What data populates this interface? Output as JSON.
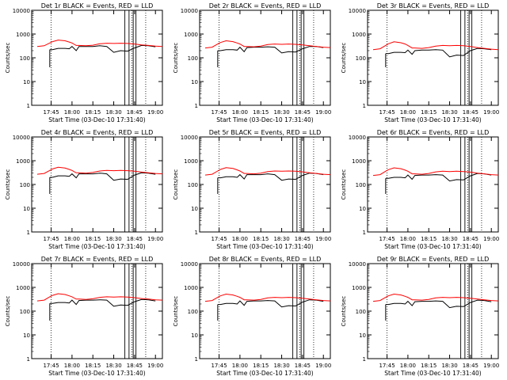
{
  "figure": {
    "xlabel": "Start Time (03-Dec-10 17:31:40)",
    "ylabel": "Counts/sec"
  },
  "colors": {
    "events": "#000000",
    "lld": "#ff0000",
    "axis": "#000000",
    "background": "#ffffff"
  },
  "chart_data": [
    {
      "type": "line",
      "title": "Det 1r BLACK = Events, RED = LLD",
      "xlabel": "Start Time (03-Dec-10 17:31:40)",
      "ylabel": "Counts/sec",
      "y_scale": "log",
      "ylim": [
        1,
        10000
      ],
      "xlim": [
        "17:31",
        "19:05"
      ],
      "y_ticks": [
        "1",
        "10",
        "100",
        "1000",
        "10000"
      ],
      "x_ticks": [
        "17:45",
        "18:00",
        "18:15",
        "18:30",
        "18:45",
        "19:00"
      ],
      "x": [
        "17:35",
        "17:40",
        "17:44",
        "17:46",
        "17:50",
        "17:55",
        "17:58",
        "18:00",
        "18:03",
        "18:05",
        "18:10",
        "18:15",
        "18:20",
        "18:25",
        "18:30",
        "18:35",
        "18:40",
        "18:45",
        "18:50",
        "18:55",
        "19:00",
        "19:05"
      ],
      "series": [
        {
          "name": "Events",
          "values": [
            null,
            null,
            220,
            220,
            250,
            250,
            240,
            300,
            200,
            300,
            300,
            300,
            320,
            300,
            170,
            200,
            190,
            260,
            330,
            320,
            290,
            null
          ]
        },
        {
          "name": "LLD",
          "values": [
            300,
            320,
            420,
            480,
            560,
            520,
            460,
            420,
            330,
            330,
            320,
            340,
            390,
            410,
            400,
            410,
            400,
            380,
            350,
            330,
            310,
            300
          ]
        }
      ]
    },
    {
      "type": "line",
      "title": "Det 2r BLACK = Events, RED = LLD",
      "xlabel": "Start Time (03-Dec-10 17:31:40)",
      "ylabel": "Counts/sec",
      "y_scale": "log",
      "ylim": [
        1,
        10000
      ],
      "xlim": [
        "17:31",
        "19:05"
      ],
      "y_ticks": [
        "1",
        "10",
        "100",
        "1000",
        "10000"
      ],
      "x_ticks": [
        "17:45",
        "18:00",
        "18:15",
        "18:30",
        "18:45",
        "19:00"
      ],
      "x": [
        "17:35",
        "17:40",
        "17:44",
        "17:46",
        "17:50",
        "17:55",
        "17:58",
        "18:00",
        "18:03",
        "18:05",
        "18:10",
        "18:15",
        "18:20",
        "18:25",
        "18:30",
        "18:35",
        "18:40",
        "18:45",
        "18:50",
        "18:55",
        "19:00",
        "19:05"
      ],
      "series": [
        {
          "name": "Events",
          "values": [
            null,
            null,
            200,
            200,
            220,
            220,
            210,
            280,
            180,
            270,
            280,
            280,
            290,
            280,
            160,
            180,
            175,
            240,
            300,
            300,
            270,
            null
          ]
        },
        {
          "name": "LLD",
          "values": [
            260,
            280,
            380,
            440,
            520,
            480,
            420,
            380,
            300,
            300,
            290,
            310,
            360,
            380,
            370,
            380,
            370,
            350,
            320,
            300,
            280,
            270
          ]
        }
      ]
    },
    {
      "type": "line",
      "title": "Det 3r BLACK = Events, RED = LLD",
      "xlabel": "Start Time (03-Dec-10 17:31:40)",
      "ylabel": "Counts/sec",
      "y_scale": "log",
      "ylim": [
        1,
        10000
      ],
      "xlim": [
        "17:31",
        "19:05"
      ],
      "y_ticks": [
        "1",
        "10",
        "100",
        "1000",
        "10000"
      ],
      "x_ticks": [
        "17:45",
        "18:00",
        "18:15",
        "18:30",
        "18:45",
        "19:00"
      ],
      "x": [
        "17:35",
        "17:40",
        "17:44",
        "17:46",
        "17:50",
        "17:55",
        "17:58",
        "18:00",
        "18:03",
        "18:05",
        "18:10",
        "18:15",
        "18:20",
        "18:25",
        "18:30",
        "18:35",
        "18:40",
        "18:45",
        "18:50",
        "18:55",
        "19:00",
        "19:05"
      ],
      "series": [
        {
          "name": "Events",
          "values": [
            null,
            null,
            150,
            150,
            170,
            170,
            165,
            210,
            140,
            200,
            210,
            210,
            220,
            210,
            110,
            130,
            125,
            200,
            250,
            240,
            220,
            null
          ]
        },
        {
          "name": "LLD",
          "values": [
            220,
            240,
            330,
            390,
            470,
            430,
            380,
            330,
            260,
            260,
            250,
            270,
            310,
            330,
            320,
            330,
            320,
            300,
            270,
            250,
            230,
            220
          ]
        }
      ]
    },
    {
      "type": "line",
      "title": "Det 4r BLACK = Events, RED = LLD",
      "xlabel": "Start Time (03-Dec-10 17:31:40)",
      "ylabel": "Counts/sec",
      "y_scale": "log",
      "ylim": [
        1,
        10000
      ],
      "xlim": [
        "17:31",
        "19:05"
      ],
      "y_ticks": [
        "1",
        "10",
        "100",
        "1000",
        "10000"
      ],
      "x_ticks": [
        "17:45",
        "18:00",
        "18:15",
        "18:30",
        "18:45",
        "19:00"
      ],
      "x": [
        "17:35",
        "17:40",
        "17:44",
        "17:46",
        "17:50",
        "17:55",
        "17:58",
        "18:00",
        "18:03",
        "18:05",
        "18:10",
        "18:15",
        "18:20",
        "18:25",
        "18:30",
        "18:35",
        "18:40",
        "18:45",
        "18:50",
        "18:55",
        "19:00",
        "19:05"
      ],
      "series": [
        {
          "name": "Events",
          "values": [
            null,
            null,
            200,
            200,
            230,
            230,
            220,
            280,
            190,
            280,
            280,
            280,
            300,
            280,
            150,
            170,
            165,
            250,
            310,
            300,
            270,
            null
          ]
        },
        {
          "name": "LLD",
          "values": [
            270,
            290,
            390,
            450,
            530,
            490,
            430,
            390,
            310,
            310,
            300,
            320,
            370,
            390,
            380,
            390,
            380,
            360,
            330,
            310,
            290,
            280
          ]
        }
      ]
    },
    {
      "type": "line",
      "title": "Det 5r BLACK = Events, RED = LLD",
      "xlabel": "Start Time (03-Dec-10 17:31:40)",
      "ylabel": "Counts/sec",
      "y_scale": "log",
      "ylim": [
        1,
        10000
      ],
      "xlim": [
        "17:31",
        "19:05"
      ],
      "y_ticks": [
        "1",
        "10",
        "100",
        "1000",
        "10000"
      ],
      "x_ticks": [
        "17:45",
        "18:00",
        "18:15",
        "18:30",
        "18:45",
        "19:00"
      ],
      "x": [
        "17:35",
        "17:40",
        "17:44",
        "17:46",
        "17:50",
        "17:55",
        "17:58",
        "18:00",
        "18:03",
        "18:05",
        "18:10",
        "18:15",
        "18:20",
        "18:25",
        "18:30",
        "18:35",
        "18:40",
        "18:45",
        "18:50",
        "18:55",
        "19:00",
        "19:05"
      ],
      "series": [
        {
          "name": "Events",
          "values": [
            null,
            null,
            190,
            190,
            210,
            210,
            200,
            260,
            170,
            260,
            260,
            260,
            280,
            260,
            150,
            170,
            165,
            240,
            300,
            290,
            260,
            null
          ]
        },
        {
          "name": "LLD",
          "values": [
            250,
            270,
            370,
            430,
            510,
            470,
            410,
            370,
            290,
            290,
            280,
            300,
            350,
            370,
            360,
            370,
            360,
            340,
            310,
            290,
            270,
            260
          ]
        }
      ]
    },
    {
      "type": "line",
      "title": "Det 6r BLACK = Events, RED = LLD",
      "xlabel": "Start Time (03-Dec-10 17:31:40)",
      "ylabel": "Counts/sec",
      "y_scale": "log",
      "ylim": [
        1,
        10000
      ],
      "xlim": [
        "17:31",
        "19:05"
      ],
      "y_ticks": [
        "1",
        "10",
        "100",
        "1000",
        "10000"
      ],
      "x_ticks": [
        "17:45",
        "18:00",
        "18:15",
        "18:30",
        "18:45",
        "19:00"
      ],
      "x": [
        "17:35",
        "17:40",
        "17:44",
        "17:46",
        "17:50",
        "17:55",
        "17:58",
        "18:00",
        "18:03",
        "18:05",
        "18:10",
        "18:15",
        "18:20",
        "18:25",
        "18:30",
        "18:35",
        "18:40",
        "18:45",
        "18:50",
        "18:55",
        "19:00",
        "19:05"
      ],
      "series": [
        {
          "name": "Events",
          "values": [
            null,
            null,
            180,
            180,
            200,
            200,
            190,
            250,
            165,
            240,
            250,
            250,
            260,
            250,
            140,
            160,
            155,
            230,
            290,
            280,
            250,
            null
          ]
        },
        {
          "name": "LLD",
          "values": [
            240,
            260,
            360,
            420,
            500,
            460,
            400,
            360,
            280,
            280,
            270,
            290,
            340,
            360,
            350,
            360,
            350,
            330,
            300,
            280,
            260,
            250
          ]
        }
      ]
    },
    {
      "type": "line",
      "title": "Det 7r BLACK = Events, RED = LLD",
      "xlabel": "Start Time (03-Dec-10 17:31:40)",
      "ylabel": "Counts/sec",
      "y_scale": "log",
      "ylim": [
        1,
        10000
      ],
      "xlim": [
        "17:31",
        "19:05"
      ],
      "y_ticks": [
        "1",
        "10",
        "100",
        "1000",
        "10000"
      ],
      "x_ticks": [
        "17:45",
        "18:00",
        "18:15",
        "18:30",
        "18:45",
        "19:00"
      ],
      "x": [
        "17:35",
        "17:40",
        "17:44",
        "17:46",
        "17:50",
        "17:55",
        "17:58",
        "18:00",
        "18:03",
        "18:05",
        "18:10",
        "18:15",
        "18:20",
        "18:25",
        "18:30",
        "18:35",
        "18:40",
        "18:45",
        "18:50",
        "18:55",
        "19:00",
        "19:05"
      ],
      "series": [
        {
          "name": "Events",
          "values": [
            null,
            null,
            210,
            210,
            230,
            230,
            220,
            290,
            190,
            280,
            290,
            290,
            300,
            290,
            160,
            180,
            175,
            250,
            310,
            300,
            270,
            null
          ]
        },
        {
          "name": "LLD",
          "values": [
            270,
            290,
            400,
            460,
            540,
            500,
            440,
            400,
            320,
            320,
            310,
            330,
            380,
            400,
            390,
            400,
            390,
            370,
            340,
            320,
            300,
            290
          ]
        }
      ]
    },
    {
      "type": "line",
      "title": "Det 8r BLACK = Events, RED = LLD",
      "xlabel": "Start Time (03-Dec-10 17:31:40)",
      "ylabel": "Counts/sec",
      "y_scale": "log",
      "ylim": [
        1,
        10000
      ],
      "xlim": [
        "17:31",
        "19:05"
      ],
      "y_ticks": [
        "1",
        "10",
        "100",
        "1000",
        "10000"
      ],
      "x_ticks": [
        "17:45",
        "18:00",
        "18:15",
        "18:30",
        "18:45",
        "19:00"
      ],
      "x": [
        "17:35",
        "17:40",
        "17:44",
        "17:46",
        "17:50",
        "17:55",
        "17:58",
        "18:00",
        "18:03",
        "18:05",
        "18:10",
        "18:15",
        "18:20",
        "18:25",
        "18:30",
        "18:35",
        "18:40",
        "18:45",
        "18:50",
        "18:55",
        "19:00",
        "19:05"
      ],
      "series": [
        {
          "name": "Events",
          "values": [
            null,
            null,
            190,
            190,
            210,
            210,
            200,
            270,
            175,
            260,
            270,
            270,
            280,
            270,
            150,
            170,
            165,
            240,
            300,
            290,
            260,
            null
          ]
        },
        {
          "name": "LLD",
          "values": [
            260,
            280,
            380,
            440,
            520,
            480,
            420,
            380,
            300,
            300,
            290,
            310,
            360,
            380,
            370,
            380,
            370,
            350,
            320,
            300,
            280,
            270
          ]
        }
      ]
    },
    {
      "type": "line",
      "title": "Det 9r BLACK = Events, RED = LLD",
      "xlabel": "Start Time (03-Dec-10 17:31:40)",
      "ylabel": "Counts/sec",
      "y_scale": "log",
      "ylim": [
        1,
        10000
      ],
      "xlim": [
        "17:31",
        "19:05"
      ],
      "y_ticks": [
        "1",
        "10",
        "100",
        "1000",
        "10000"
      ],
      "x_ticks": [
        "17:45",
        "18:00",
        "18:15",
        "18:30",
        "18:45",
        "19:00"
      ],
      "x": [
        "17:35",
        "17:40",
        "17:44",
        "17:46",
        "17:50",
        "17:55",
        "17:58",
        "18:00",
        "18:03",
        "18:05",
        "18:10",
        "18:15",
        "18:20",
        "18:25",
        "18:30",
        "18:35",
        "18:40",
        "18:45",
        "18:50",
        "18:55",
        "19:00",
        "19:05"
      ],
      "series": [
        {
          "name": "Events",
          "values": [
            null,
            null,
            190,
            190,
            210,
            210,
            200,
            260,
            170,
            250,
            260,
            260,
            270,
            260,
            140,
            160,
            155,
            230,
            290,
            280,
            250,
            null
          ]
        },
        {
          "name": "LLD",
          "values": [
            260,
            280,
            380,
            440,
            520,
            480,
            420,
            380,
            300,
            300,
            290,
            310,
            360,
            380,
            370,
            380,
            370,
            350,
            320,
            300,
            280,
            270
          ]
        }
      ]
    }
  ]
}
